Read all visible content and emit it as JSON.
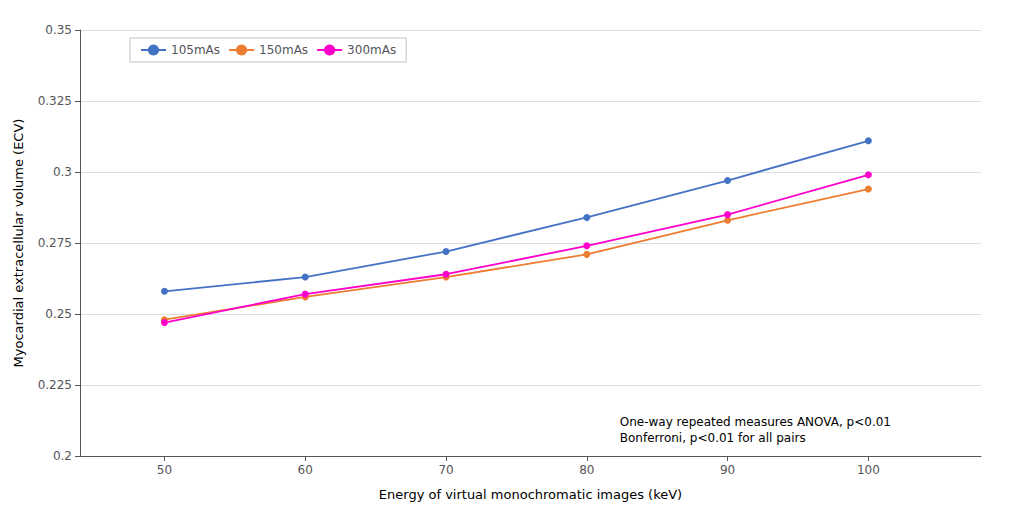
{
  "chart_data": {
    "type": "line",
    "x": [
      50,
      60,
      70,
      80,
      90,
      100
    ],
    "series": [
      {
        "name": "105mAs",
        "color": "#4472c4",
        "marker": "circle",
        "values": [
          0.258,
          0.263,
          0.272,
          0.284,
          0.297,
          0.311
        ]
      },
      {
        "name": "150mAs",
        "color": "#ed7d31",
        "marker": "circle",
        "values": [
          0.248,
          0.256,
          0.263,
          0.271,
          0.283,
          0.294
        ]
      },
      {
        "name": "300mAs",
        "color": "#ff00cc",
        "marker": "circle",
        "values": [
          0.247,
          0.257,
          0.264,
          0.274,
          0.285,
          0.299
        ]
      }
    ],
    "xlabel": "Energy of virtual monochromatic images (keV)",
    "ylabel": "Myocardial extracellular volume (ECV)",
    "xlim": [
      44,
      108
    ],
    "xticks": [
      50,
      60,
      70,
      80,
      90,
      100
    ],
    "ylim": [
      0.2,
      0.35
    ],
    "yticks": [
      0.2,
      0.225,
      0.25,
      0.275,
      0.3,
      0.325,
      0.35
    ],
    "annotations": [
      "One-way repeated measures ANOVA, p<0.01",
      "Bonferroni, p<0.01 for all pairs"
    ],
    "grid": true,
    "legend": "upper left"
  }
}
